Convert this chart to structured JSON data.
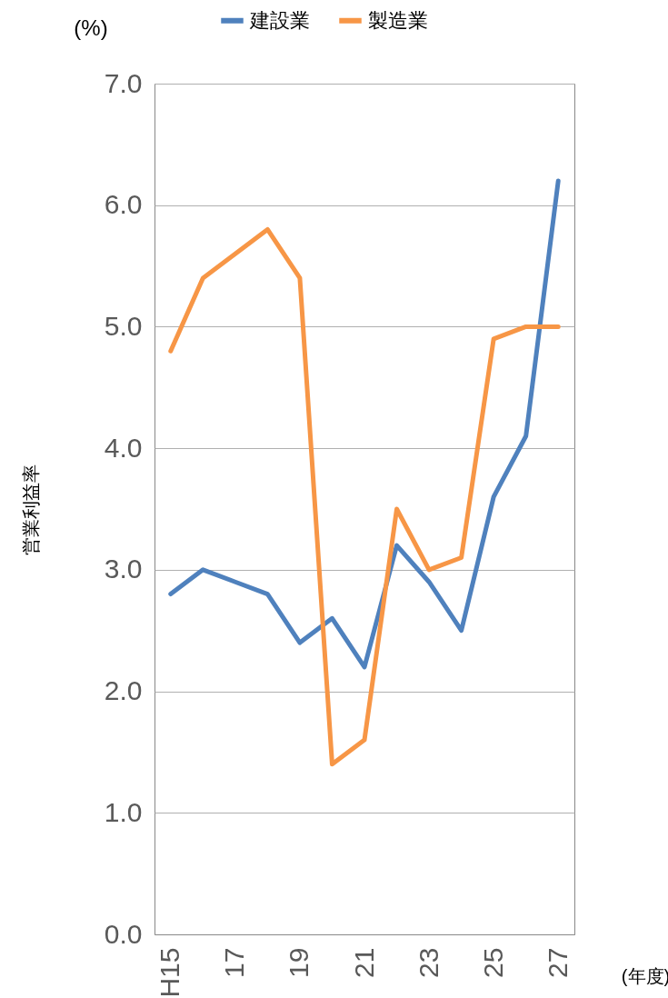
{
  "chart_data": {
    "type": "line",
    "categories": [
      "H15",
      null,
      "17",
      null,
      "19",
      null,
      "21",
      null,
      "23",
      null,
      "25",
      null,
      "27"
    ],
    "series": [
      {
        "name": "建設業",
        "color": "#4f81bd",
        "values": [
          2.8,
          3.0,
          2.9,
          2.8,
          2.4,
          2.6,
          2.2,
          3.2,
          2.9,
          2.5,
          3.6,
          4.1,
          6.2
        ]
      },
      {
        "name": "製造業",
        "color": "#f79646",
        "values": [
          4.8,
          5.4,
          5.6,
          5.8,
          5.4,
          1.4,
          1.6,
          3.5,
          3.0,
          3.1,
          4.9,
          5.0,
          5.0
        ]
      }
    ],
    "ylabel": "営業利益率",
    "xlabel": "(年度)",
    "annotations": [
      "(%)"
    ],
    "ylim": [
      0,
      7
    ],
    "yticks": [
      {
        "value": 0,
        "label": "0.0"
      },
      {
        "value": 1,
        "label": "1.0"
      },
      {
        "value": 2,
        "label": "2.0"
      },
      {
        "value": 3,
        "label": "3.0"
      },
      {
        "value": 4,
        "label": "4.0"
      },
      {
        "value": 5,
        "label": "5.0"
      },
      {
        "value": 6,
        "label": "6.0"
      },
      {
        "value": 7,
        "label": "7.0"
      }
    ],
    "grid": "y",
    "legend": "top",
    "marker": "none",
    "line_style": "solid"
  }
}
